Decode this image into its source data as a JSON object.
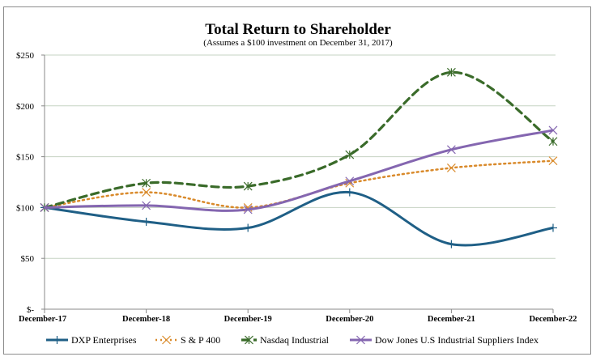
{
  "chart_data": {
    "type": "line",
    "title": "Total Return to Shareholder",
    "subtitle": "(Assumes a $100 investment on December 31, 2017)",
    "xlabel": "",
    "ylabel": "",
    "categories": [
      "December-17",
      "December-18",
      "December-19",
      "December-20",
      "December-21",
      "December-22"
    ],
    "ylim": [
      0,
      250
    ],
    "yticks": [
      0,
      50,
      100,
      150,
      200,
      250
    ],
    "ytick_labels": [
      "$-",
      "$50",
      "$100",
      "$150",
      "$200",
      "$250"
    ],
    "grid": true,
    "legend_position": "bottom",
    "smoothed": true,
    "series": [
      {
        "name": "DXP Enterprises",
        "values": [
          100,
          86,
          80,
          115,
          64,
          80
        ],
        "color": "#1f5f86",
        "dash": "solid",
        "marker": "plus"
      },
      {
        "name": "S & P 400",
        "values": [
          100,
          115,
          100,
          124,
          139,
          146
        ],
        "color": "#d98a2b",
        "dash": "dotted",
        "marker": "x"
      },
      {
        "name": "Nasdaq Industrial",
        "values": [
          100,
          124,
          121,
          152,
          233,
          165
        ],
        "color": "#3a6b2a",
        "dash": "dashed",
        "marker": "star"
      },
      {
        "name": "Dow Jones U.S Industrial Suppliers Index",
        "values": [
          100,
          102,
          98,
          126,
          157,
          176
        ],
        "color": "#8466b0",
        "dash": "solid",
        "marker": "x"
      }
    ]
  }
}
